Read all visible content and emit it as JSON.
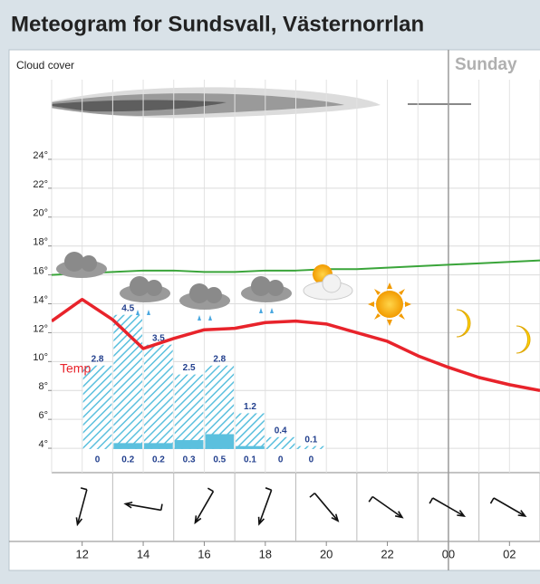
{
  "chart_data": {
    "type": "meteogram",
    "title": "Meteogram for Sundsvall, Västernorrlan",
    "cloud_label": "Cloud cover",
    "day_label": "Sunday",
    "day_x": 24,
    "x": [
      11,
      12,
      13,
      14,
      15,
      16,
      17,
      18,
      19,
      20,
      21,
      22,
      23,
      24,
      25,
      26,
      27
    ],
    "xlim": [
      11,
      27
    ],
    "xticks": [
      12,
      14,
      16,
      18,
      20,
      22,
      {
        "value": 24,
        "label": "00"
      },
      {
        "value": 26,
        "label": "02"
      }
    ],
    "ylim": [
      2.5,
      25
    ],
    "yticks": [
      {
        "value": 4,
        "label": "4°"
      },
      {
        "value": 6,
        "label": "6°"
      },
      {
        "value": 8,
        "label": "8°"
      },
      {
        "value": 10,
        "label": "10°"
      },
      {
        "value": 12,
        "label": "12°"
      },
      {
        "value": 14,
        "label": "14°"
      },
      {
        "value": 16,
        "label": "16°"
      },
      {
        "value": 18,
        "label": "18°"
      },
      {
        "value": 20,
        "label": "20°"
      },
      {
        "value": 22,
        "label": "22°"
      },
      {
        "value": 24,
        "label": "24°"
      }
    ],
    "grid": true,
    "series": [
      {
        "name": "Temp",
        "color": "#e8232b",
        "values": [
          12.8,
          14.3,
          12.9,
          10.9,
          11.6,
          12.2,
          12.3,
          12.7,
          12.8,
          12.6,
          12.0,
          11.4,
          10.4,
          9.6,
          8.9,
          8.4,
          8.0
        ]
      },
      {
        "color": "#3aa53a",
        "values": [
          16.0,
          16.1,
          16.2,
          16.3,
          16.3,
          16.2,
          16.2,
          16.3,
          16.3,
          16.4,
          16.4,
          16.5,
          16.6,
          16.7,
          16.8,
          16.9,
          17.0
        ]
      }
    ],
    "y2lim": [
      -0.7,
      10.2
    ],
    "precipitation": {
      "x": [
        12,
        13,
        14,
        15,
        16,
        17,
        18,
        19
      ],
      "max": [
        2.8,
        4.5,
        3.5,
        2.5,
        2.8,
        1.2,
        0.4,
        0.1
      ],
      "min": [
        0,
        0.2,
        0.2,
        0.3,
        0.5,
        0.1,
        0,
        0
      ],
      "color": "#5bc0de"
    },
    "wind": {
      "x": [
        12,
        14,
        16,
        18,
        20,
        22,
        24,
        26
      ],
      "from": [
        15,
        100,
        30,
        20,
        320,
        305,
        300,
        300
      ]
    }
  }
}
